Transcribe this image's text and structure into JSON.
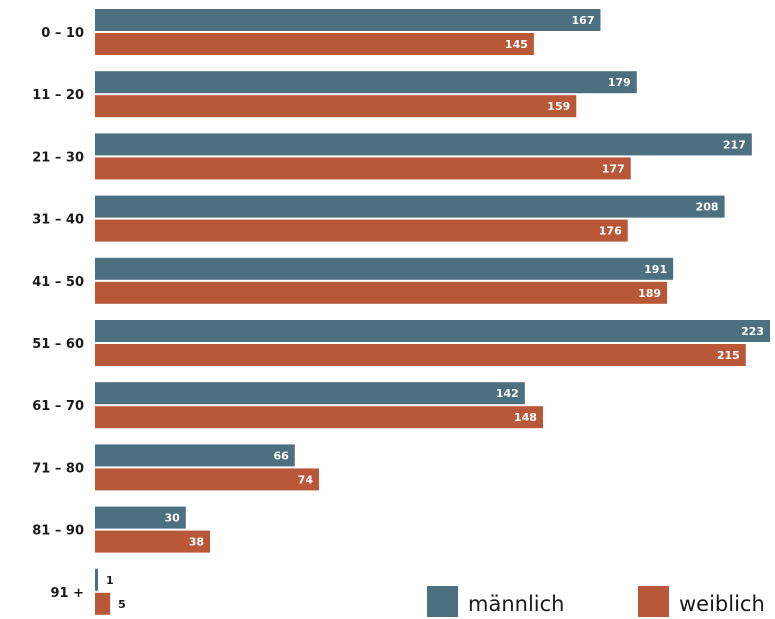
{
  "chart_data": {
    "type": "bar",
    "orientation": "horizontal",
    "categories": [
      "0 – 10",
      "11 – 20",
      "21 – 30",
      "31 – 40",
      "41 – 50",
      "51 – 60",
      "61 – 70",
      "71 – 80",
      "81 – 90",
      "91 +"
    ],
    "series": [
      {
        "name": "männlich",
        "color": "#4d7080",
        "values": [
          167,
          179,
          217,
          208,
          191,
          223,
          142,
          66,
          30,
          1
        ]
      },
      {
        "name": "weiblich",
        "color": "#b95838",
        "values": [
          145,
          159,
          177,
          176,
          189,
          215,
          148,
          74,
          38,
          5
        ]
      }
    ],
    "title": "",
    "xlabel": "",
    "ylabel": "",
    "xlim": [
      0,
      223
    ],
    "grid": false,
    "legend_position": "bottom-right",
    "data_labels": true
  }
}
